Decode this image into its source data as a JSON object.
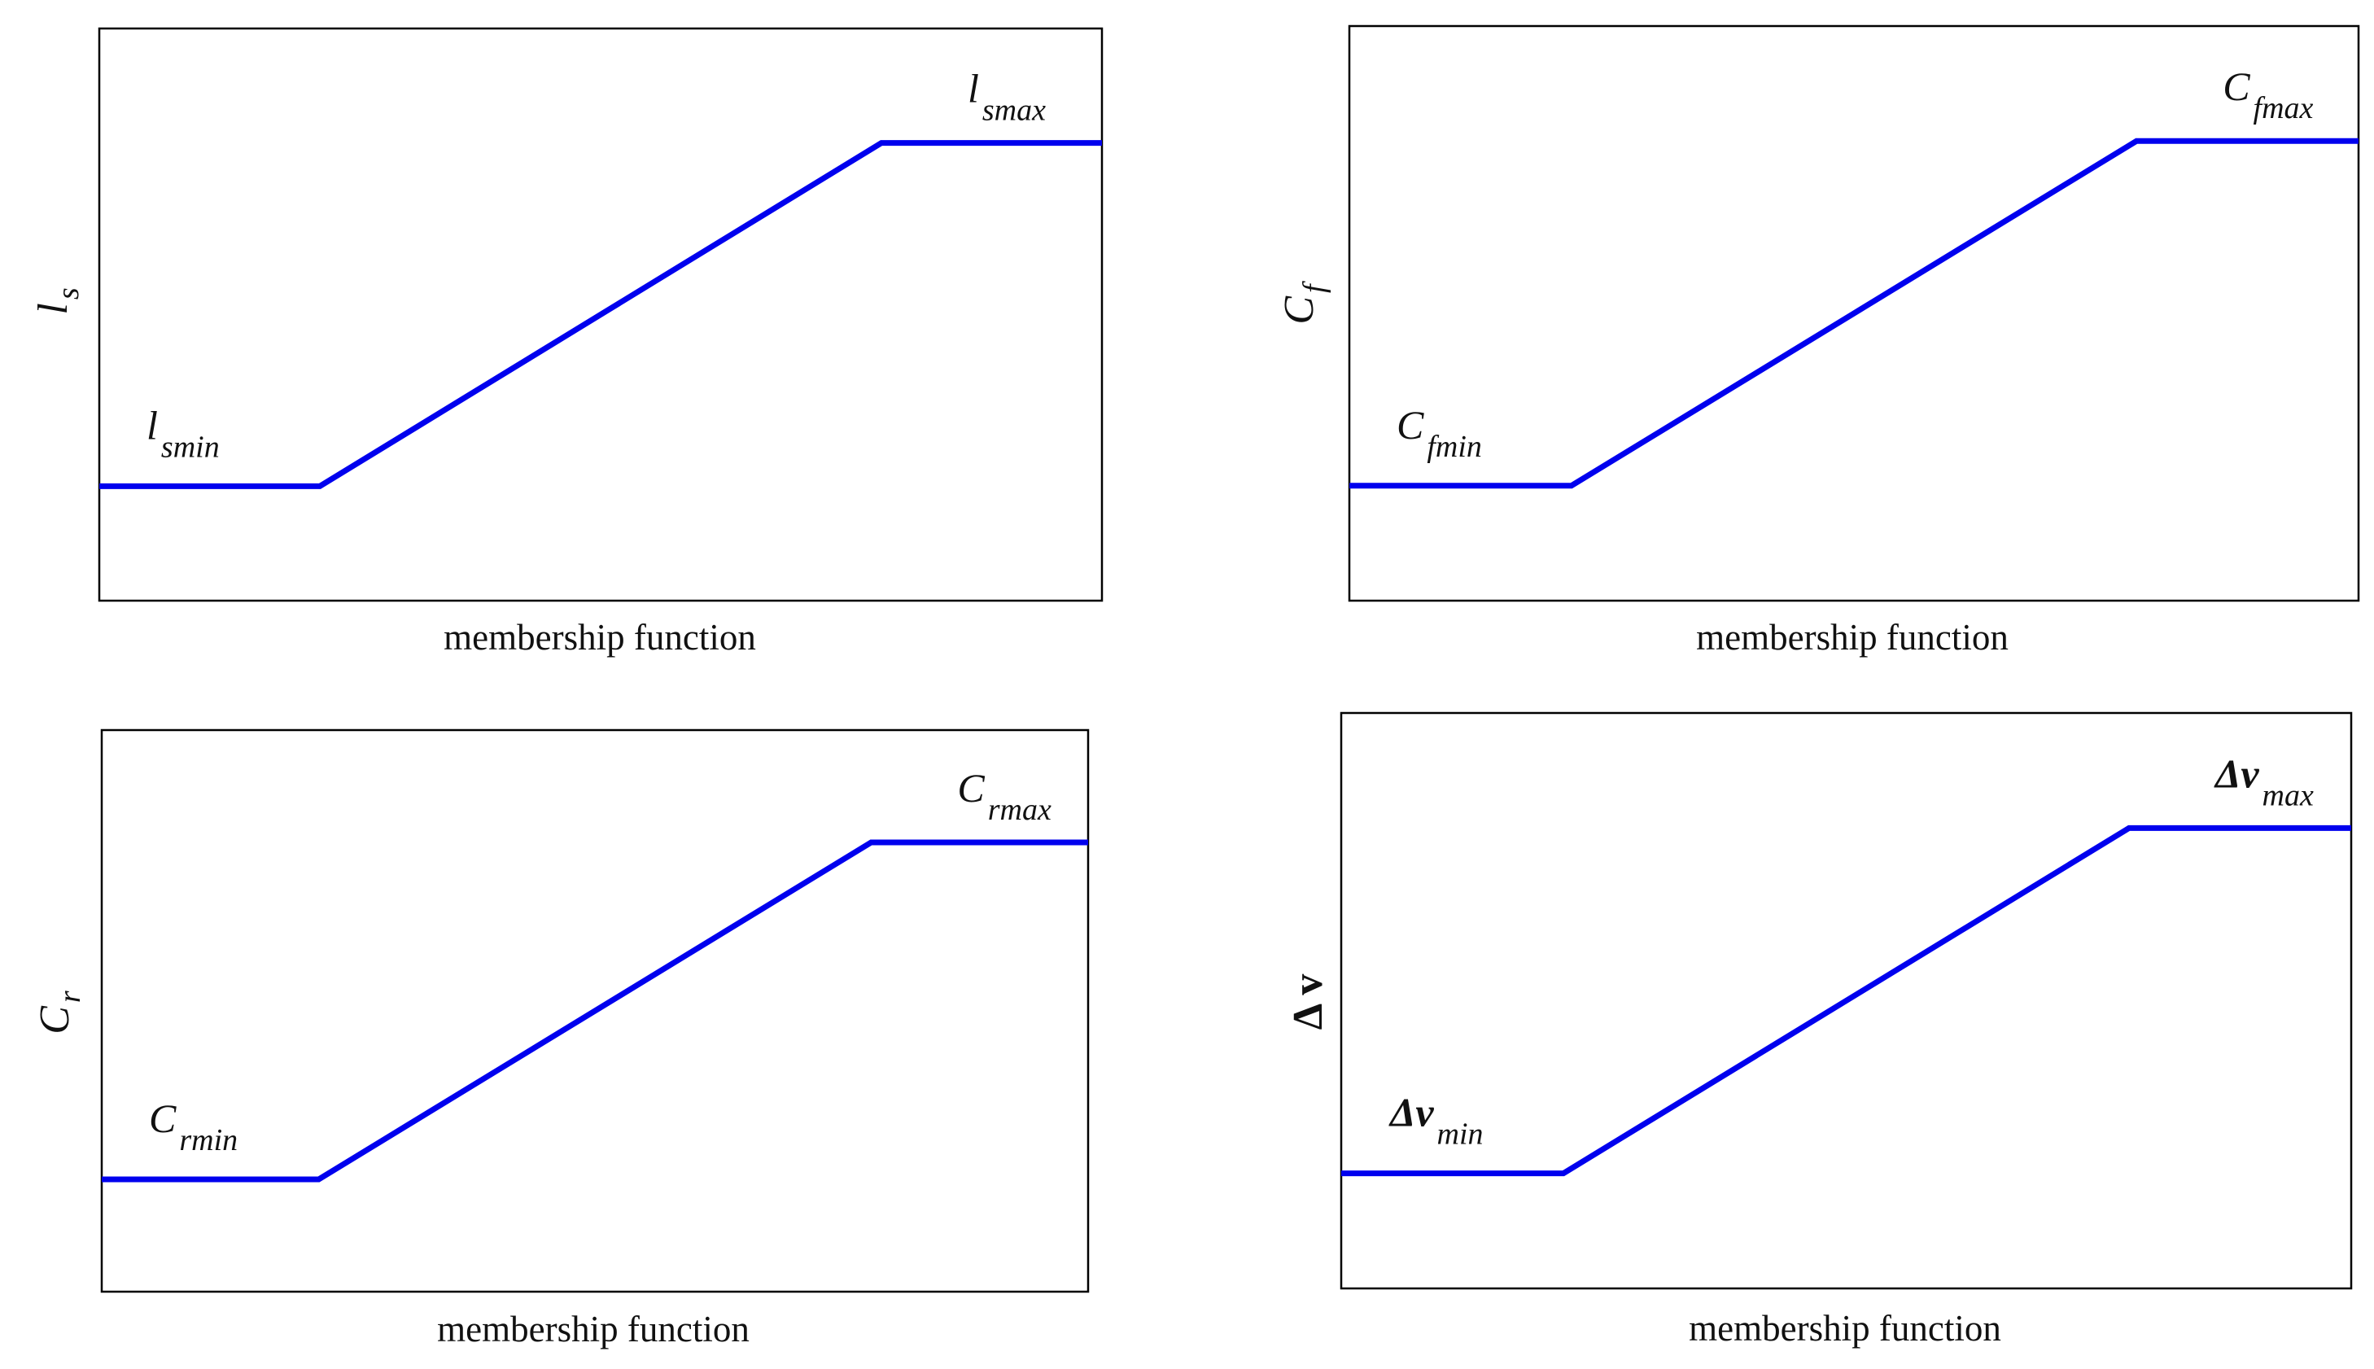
{
  "figure": {
    "line_color": "#0000ee",
    "frame_color": "#000000"
  },
  "chart_data": [
    {
      "id": "ls",
      "type": "line",
      "xlabel": "membership function",
      "ylabel": {
        "main": "l",
        "sub": "s",
        "bold": false
      },
      "annotations": {
        "min": {
          "main": "l",
          "sub": "smin"
        },
        "max": {
          "main": "l",
          "sub": "smax"
        }
      },
      "xlim": [
        0,
        1
      ],
      "ylim": [
        0,
        1
      ],
      "grid": false,
      "series": [
        {
          "x": [
            0,
            0.22,
            0.78,
            1
          ],
          "y": [
            0.2,
            0.2,
            0.8,
            0.8
          ]
        }
      ]
    },
    {
      "id": "cf",
      "type": "line",
      "xlabel": "membership function",
      "ylabel": {
        "main": "C",
        "sub": "f",
        "bold": false
      },
      "annotations": {
        "min": {
          "main": "C",
          "sub": "fmin"
        },
        "max": {
          "main": "C",
          "sub": "fmax"
        }
      },
      "xlim": [
        0,
        1
      ],
      "ylim": [
        0,
        1
      ],
      "grid": false,
      "series": [
        {
          "x": [
            0,
            0.22,
            0.78,
            1
          ],
          "y": [
            0.2,
            0.2,
            0.8,
            0.8
          ]
        }
      ]
    },
    {
      "id": "cr",
      "type": "line",
      "xlabel": "membership function",
      "ylabel": {
        "main": "C",
        "sub": "r",
        "bold": false
      },
      "annotations": {
        "min": {
          "main": "C",
          "sub": "rmin"
        },
        "max": {
          "main": "C",
          "sub": "rmax"
        }
      },
      "xlim": [
        0,
        1
      ],
      "ylim": [
        0,
        1
      ],
      "grid": false,
      "series": [
        {
          "x": [
            0,
            0.22,
            0.78,
            1
          ],
          "y": [
            0.2,
            0.2,
            0.8,
            0.8
          ]
        }
      ]
    },
    {
      "id": "dv",
      "type": "line",
      "xlabel": "membership function",
      "ylabel": {
        "main": "Δ v",
        "sub": "",
        "bold": true
      },
      "annotations": {
        "min": {
          "main": "Δv",
          "sub": "min"
        },
        "max": {
          "main": "Δv",
          "sub": "max"
        }
      },
      "xlim": [
        0,
        1
      ],
      "ylim": [
        0,
        1
      ],
      "grid": false,
      "series": [
        {
          "x": [
            0,
            0.22,
            0.78,
            1
          ],
          "y": [
            0.2,
            0.2,
            0.8,
            0.8
          ]
        }
      ]
    }
  ]
}
